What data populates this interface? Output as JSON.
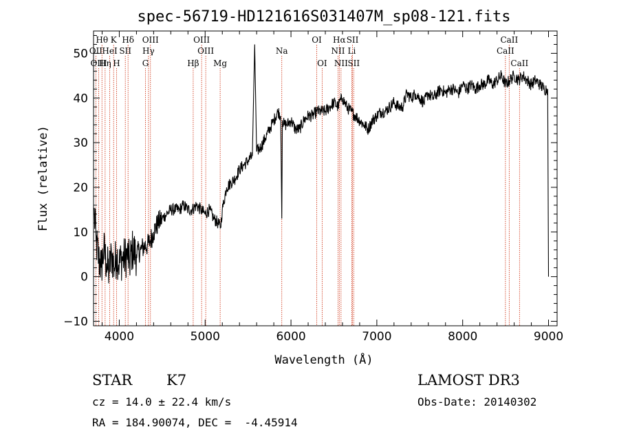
{
  "chart_data": {
    "type": "line",
    "title": "spec-56719-HD121616S031407M_sp08-121.fits",
    "xlabel": "Wavelength (Å)",
    "ylabel": "Flux (relative)",
    "xlim": [
      3700,
      9100
    ],
    "ylim": [
      -11,
      55
    ],
    "xticks": [
      4000,
      5000,
      6000,
      7000,
      8000,
      9000
    ],
    "yticks": [
      -10,
      0,
      10,
      20,
      30,
      40,
      50
    ],
    "xtick_labels": [
      "4000",
      "5000",
      "6000",
      "7000",
      "8000",
      "9000"
    ],
    "ytick_labels": [
      "−10",
      "0",
      "10",
      "20",
      "30",
      "40",
      "50"
    ],
    "series": [
      {
        "name": "flux",
        "x": [
          3705,
          3730,
          3760,
          3790,
          3820,
          3850,
          3880,
          3910,
          3940,
          3970,
          4000,
          4030,
          4060,
          4090,
          4120,
          4150,
          4200,
          4250,
          4300,
          4330,
          4360,
          4400,
          4450,
          4500,
          4550,
          4600,
          4650,
          4700,
          4750,
          4800,
          4850,
          4900,
          4950,
          5000,
          5050,
          5100,
          5150,
          5180,
          5200,
          5250,
          5300,
          5350,
          5400,
          5450,
          5500,
          5550,
          5577,
          5600,
          5650,
          5700,
          5750,
          5800,
          5850,
          5880,
          5893,
          5900,
          5920,
          5950,
          6000,
          6050,
          6100,
          6150,
          6200,
          6250,
          6300,
          6350,
          6400,
          6450,
          6500,
          6550,
          6563,
          6600,
          6650,
          6700,
          6750,
          6800,
          6850,
          6900,
          6950,
          7000,
          7050,
          7100,
          7150,
          7200,
          7250,
          7300,
          7350,
          7400,
          7450,
          7500,
          7550,
          7600,
          7650,
          7700,
          7750,
          7800,
          7850,
          7900,
          7950,
          8000,
          8050,
          8100,
          8150,
          8200,
          8250,
          8300,
          8350,
          8400,
          8450,
          8500,
          8550,
          8600,
          8650,
          8700,
          8750,
          8800,
          8850,
          8900,
          8950,
          8990,
          9000
        ],
        "y": [
          15,
          8,
          4,
          2,
          6,
          3,
          1,
          5,
          2,
          5,
          3,
          4,
          4,
          5,
          3,
          6,
          5,
          6,
          7,
          7,
          8,
          10,
          12,
          13,
          14,
          15,
          15,
          15,
          16,
          15,
          15,
          16,
          15,
          14,
          15,
          13,
          12,
          11,
          15,
          20,
          21,
          22,
          24,
          25,
          26,
          27,
          52,
          28,
          29,
          31,
          33,
          35,
          37,
          36,
          13,
          35,
          34,
          34,
          35,
          33,
          33,
          35,
          36,
          36,
          37,
          37,
          37,
          38,
          39,
          38,
          39,
          40,
          38,
          37,
          36,
          35,
          34,
          33,
          35,
          36,
          37,
          37,
          38,
          39,
          38,
          38,
          41,
          40,
          41,
          40,
          39,
          41,
          40,
          41,
          42,
          41,
          42,
          42,
          41,
          43,
          42,
          43,
          42,
          43,
          43,
          44,
          43,
          44,
          45,
          43,
          44,
          45,
          44,
          45,
          44,
          43,
          44,
          43,
          42,
          42,
          0
        ]
      }
    ],
    "spectral_lines": [
      {
        "label": "Hθ",
        "wave": 3798,
        "row": 0
      },
      {
        "label": "K",
        "wave": 3934,
        "row": 0
      },
      {
        "label": "Hδ",
        "wave": 4102,
        "row": 0
      },
      {
        "label": "OIII",
        "wave": 4363,
        "row": 0
      },
      {
        "label": "OIII",
        "wave": 4959,
        "row": 0
      },
      {
        "label": "OI",
        "wave": 6300,
        "row": 0
      },
      {
        "label": "Hα",
        "wave": 6563,
        "row": 0
      },
      {
        "label": "SII",
        "wave": 6717,
        "row": 0
      },
      {
        "label": "CaII",
        "wave": 8542,
        "row": 0
      },
      {
        "label": "OII",
        "wave": 3727,
        "row": 1
      },
      {
        "label": "HeI",
        "wave": 3889,
        "row": 1
      },
      {
        "label": "SII",
        "wave": 4070,
        "row": 1
      },
      {
        "label": "Hγ",
        "wave": 4340,
        "row": 1
      },
      {
        "label": "OIII",
        "wave": 5007,
        "row": 1
      },
      {
        "label": "NII",
        "wave": 6548,
        "row": 1
      },
      {
        "label": "Li",
        "wave": 6708,
        "row": 1
      },
      {
        "label": "CaII",
        "wave": 8498,
        "row": 1
      },
      {
        "label": "OIII",
        "wave": 3760,
        "row": 2
      },
      {
        "label": "Hη",
        "wave": 3835,
        "row": 2
      },
      {
        "label": "H",
        "wave": 3968,
        "row": 2
      },
      {
        "label": "G",
        "wave": 4305,
        "row": 2
      },
      {
        "label": "Hβ",
        "wave": 4861,
        "row": 2
      },
      {
        "label": "Mg",
        "wave": 5175,
        "row": 2
      },
      {
        "label": "Na",
        "wave": 5893,
        "row": 1
      },
      {
        "label": "OI",
        "wave": 6363,
        "row": 2
      },
      {
        "label": "NII",
        "wave": 6583,
        "row": 2
      },
      {
        "label": "SII",
        "wave": 6731,
        "row": 2
      },
      {
        "label": "CaII",
        "wave": 8662,
        "row": 2
      }
    ]
  },
  "info": {
    "class_label": "STAR",
    "subclass": "K7",
    "survey": "LAMOST DR3",
    "cz": "cz = 14.0 ± 22.4 km/s",
    "obs_date": "Obs-Date: 20140302",
    "radec": "RA = 184.90074, DEC =  -4.45914"
  },
  "colors": {
    "axis": "#000000",
    "spectrum": "#000000",
    "line_marker": "#cc2200"
  }
}
